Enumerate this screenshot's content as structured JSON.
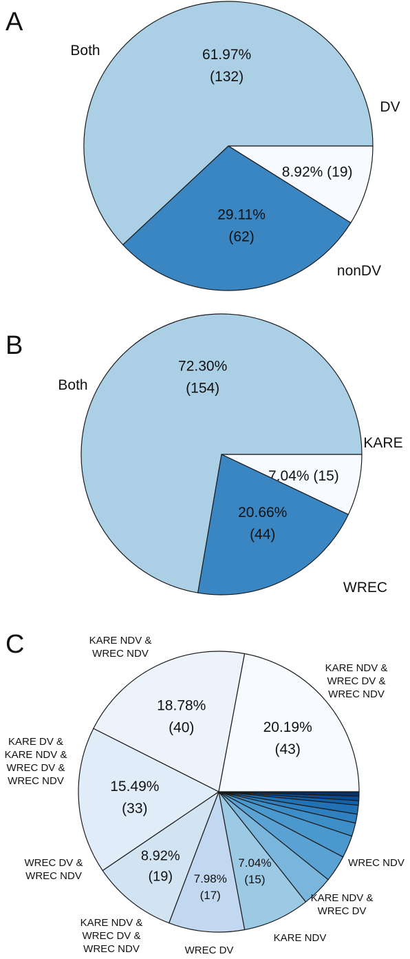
{
  "chart_data": [
    {
      "type": "pie",
      "panel": "A",
      "categories": [
        "DV",
        "nonDV",
        "Both"
      ],
      "values": [
        19,
        62,
        132
      ],
      "percentages": [
        "8.92%",
        "29.11%",
        "61.97%"
      ],
      "counts": [
        "(19)",
        "(62)",
        "(132)"
      ],
      "colors": [
        "#f7fbff",
        "#3a86c3",
        "#abd0e6"
      ]
    },
    {
      "type": "pie",
      "panel": "B",
      "categories": [
        "KARE",
        "WREC",
        "Both"
      ],
      "values": [
        15,
        44,
        154
      ],
      "percentages": [
        "7.04%",
        "20.66%",
        "72.30%"
      ],
      "counts": [
        "(15)",
        "(44)",
        "(154)"
      ],
      "colors": [
        "#f7fbff",
        "#3a86c3",
        "#abd0e6"
      ]
    },
    {
      "type": "pie",
      "panel": "C",
      "categories": [
        "",
        "",
        "",
        "",
        "",
        "",
        "WREC NDV",
        "KARE NDV & WREC DV",
        "KARE NDV",
        "WREC DV",
        "KARE NDV & WREC DV & WREC NDV",
        "WREC DV & WREC NDV",
        "KARE DV & KARE NDV & WREC DV & WREC NDV",
        "KARE NDV & WREC NDV",
        "KARE NDV & WREC DV & WREC NDV"
      ],
      "values": [
        1,
        1,
        1,
        2,
        2,
        3,
        5,
        6,
        7,
        15,
        17,
        19,
        33,
        40,
        43
      ],
      "percentages": [
        "",
        "",
        "",
        "",
        "",
        "",
        "",
        "",
        "",
        "7.04%",
        "7.98%",
        "8.92%",
        "15.49%",
        "18.78%",
        "20.19%"
      ],
      "counts": [
        "",
        "",
        "",
        "",
        "",
        "",
        "",
        "",
        "",
        "(15)",
        "(17)",
        "(19)",
        "(33)",
        "(40)",
        "(43)"
      ],
      "colors": [
        "#08306b",
        "#0b4a8f",
        "#1361a9",
        "#2171b5",
        "#2f80c0",
        "#3d8dc7",
        "#4a98cd",
        "#5aa2d3",
        "#7ab5dc",
        "#9ccae4",
        "#c2d8f0",
        "#d2e3f2",
        "#e0ecf8",
        "#ecf3fb",
        "#f7fbff"
      ]
    }
  ],
  "panel_letters": [
    "A",
    "B",
    "C"
  ],
  "labels": {
    "a_both": "Both",
    "a_dv": "DV",
    "a_nondv": "nonDV",
    "b_both": "Both",
    "b_kare": "KARE",
    "b_wrec": "WREC",
    "c_kare_ndv_wrec_ndv": [
      "KARE NDV &",
      "WREC NDV"
    ],
    "c_kare_ndv_wrec_dv_wrec_ndv": [
      "KARE NDV &",
      "WREC DV &",
      "WREC NDV"
    ],
    "c_kare_dv_all": [
      "KARE DV &",
      "KARE NDV &",
      "WREC DV &",
      "WREC NDV"
    ],
    "c_wrec_dv_wrec_ndv": [
      "WREC DV &",
      "WREC NDV"
    ],
    "c_kare_ndv_wrec_dv_wrec_ndv_2": [
      "KARE NDV &",
      "WREC DV &",
      "WREC NDV"
    ],
    "c_wrec_dv": [
      "WREC DV"
    ],
    "c_kare_ndv": [
      "KARE NDV"
    ],
    "c_kare_ndv_wrec_dv": [
      "KARE NDV &",
      "WREC DV"
    ],
    "c_wrec_ndv": [
      "WREC NDV"
    ]
  }
}
